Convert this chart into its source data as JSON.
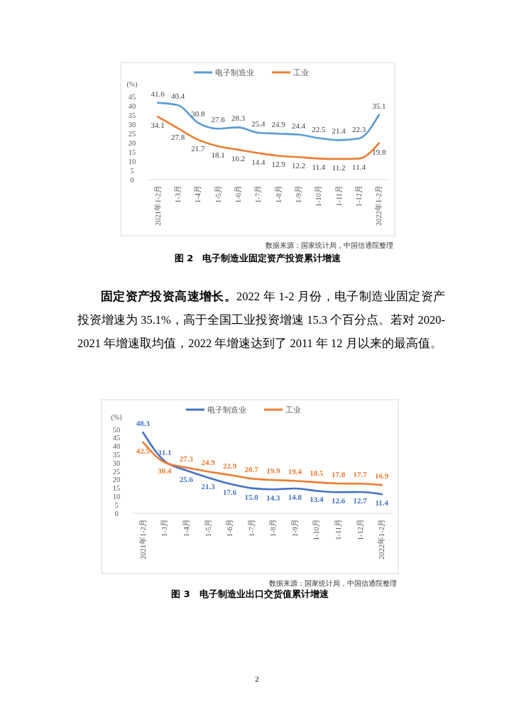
{
  "chart_data": [
    {
      "type": "line",
      "title": "图 2　电子制造业固定资产投资累计增速",
      "ylabel": "(%)",
      "categories": [
        "2021年1-2月",
        "1-3月",
        "1-4月",
        "1-5月",
        "1-6月",
        "1-7月",
        "1-8月",
        "1-9月",
        "1-10月",
        "1-11月",
        "1-12月",
        "2022年1-2月"
      ],
      "series": [
        {
          "name": "电子制造业",
          "color": "#5b9bd5",
          "values": [
            41.6,
            40.4,
            30.8,
            27.6,
            28.3,
            25.4,
            24.9,
            24.4,
            22.5,
            21.4,
            22.3,
            35.1
          ]
        },
        {
          "name": "工业",
          "color": "#ed7d31",
          "values": [
            34.1,
            27.8,
            21.7,
            18.1,
            16.2,
            14.4,
            12.9,
            12.2,
            11.4,
            11.2,
            11.4,
            19.8
          ]
        }
      ],
      "ylim": [
        0,
        45
      ],
      "yticks": [
        0,
        5,
        10,
        15,
        20,
        25,
        30,
        35,
        40,
        45
      ],
      "legend": "top",
      "data_labels": true,
      "marker": "none",
      "line_style": "solid",
      "annotations": [
        "数据来源：国家统计局，中国信通院整理",
        "固定资产投资高速增长。",
        "2022 年 1-2 月份，电子制造业固定资产投资增速为 35.1%，高于全国工业投资增速 15.3 个百分点。若对 2020-2021 年增速取均值，2022 年增速达到了 2011 年 12 月以来的最高值。"
      ]
    },
    {
      "type": "line",
      "title": "图 3　电子制造业出口交货值累计增速",
      "ylabel": "(%)",
      "categories": [
        "2021年1-2月",
        "1-3月",
        "1-4月",
        "1-5月",
        "1-6月",
        "1-7月",
        "1-8月",
        "1-9月",
        "1-10月",
        "1-11月",
        "1-12月",
        "2022年1-2月"
      ],
      "series": [
        {
          "name": "电子制造业",
          "color": "#4472c4",
          "values": [
            48.3,
            31.1,
            25.6,
            21.3,
            17.6,
            15.0,
            14.3,
            14.8,
            13.4,
            12.6,
            12.7,
            11.4
          ],
          "value_labels": [
            "48.3",
            "31.1",
            "25.6",
            "21.3",
            "17.6",
            "15.0",
            "14.3",
            "14.8",
            "13.4",
            "12.6",
            "12.7",
            "11.4"
          ]
        },
        {
          "name": "工业",
          "color": "#ed7d31",
          "values": [
            42.5,
            30.4,
            27.3,
            24.9,
            22.9,
            20.7,
            19.9,
            19.4,
            18.5,
            17.8,
            17.7,
            16.9
          ],
          "value_labels": [
            "42.5",
            "30.4",
            "27.3",
            "24.9",
            "22.9",
            "20.7",
            "19.9",
            "19.4",
            "18.5",
            "17.8",
            "17.7",
            "16.9"
          ]
        }
      ],
      "ylim": [
        0,
        50
      ],
      "yticks": [
        0,
        5,
        10,
        15,
        20,
        25,
        30,
        35,
        40,
        45,
        50
      ],
      "legend": "top",
      "marker": "none",
      "line_style": "solid",
      "annotations": [
        "数据来源：国家统计局，中国信通院整理",
        "2"
      ]
    }
  ]
}
